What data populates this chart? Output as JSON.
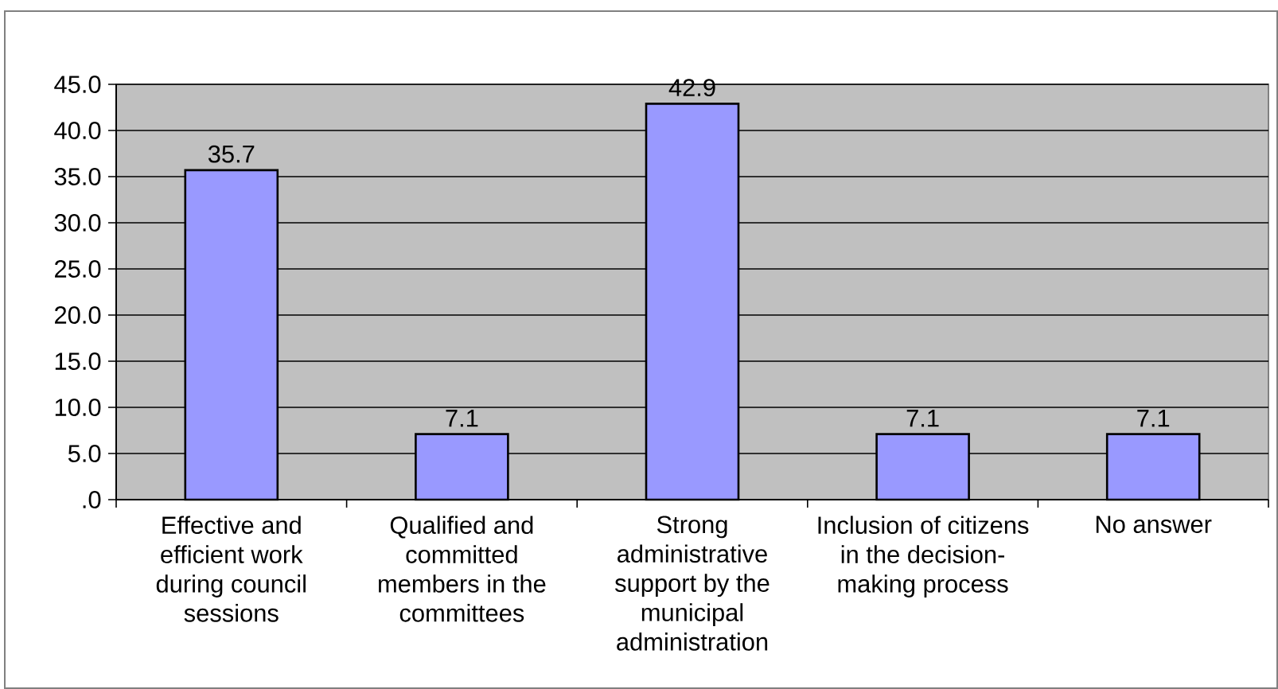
{
  "chart_data": {
    "type": "bar",
    "categories": [
      "Effective and efficient work during council sessions",
      "Qualified and committed members in the committees",
      "Strong administrative support by the municipal administration",
      "Inclusion of citizens in the decision-making process",
      "No answer"
    ],
    "values": [
      35.7,
      7.1,
      42.9,
      7.1,
      7.1
    ],
    "color": "#9999ff",
    "ylim": [
      0,
      45
    ],
    "yticks": [
      {
        "value": 0,
        "label": ".0"
      },
      {
        "value": 5,
        "label": "5.0"
      },
      {
        "value": 10,
        "label": "10.0"
      },
      {
        "value": 15,
        "label": "15.0"
      },
      {
        "value": 20,
        "label": "20.0"
      },
      {
        "value": 25,
        "label": "25.0"
      },
      {
        "value": 30,
        "label": "30.0"
      },
      {
        "value": 35,
        "label": "35.0"
      },
      {
        "value": 40,
        "label": "40.0"
      },
      {
        "value": 45,
        "label": "45.0"
      }
    ],
    "grid": "y",
    "data_labels": true
  }
}
